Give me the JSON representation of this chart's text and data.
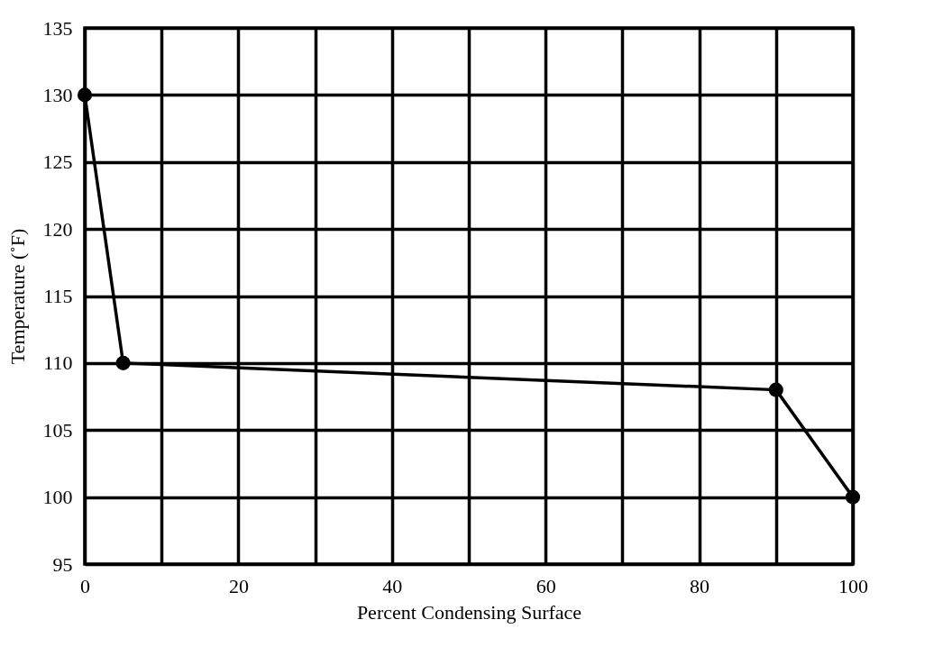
{
  "chart_data": {
    "type": "line",
    "xlabel": "Percent Condensing Surface",
    "ylabel": "Temperature (˚F)",
    "x": [
      0,
      5,
      90,
      100
    ],
    "series": [
      {
        "color": "#000000",
        "values": [
          130,
          110,
          108,
          100
        ]
      }
    ],
    "xlim": [
      0,
      100
    ],
    "xticks": [
      0,
      {
        "value": 10,
        "label": null
      },
      20,
      {
        "value": 30,
        "label": null
      },
      40,
      {
        "value": 50,
        "label": null
      },
      60,
      {
        "value": 70,
        "label": null
      },
      80,
      {
        "value": 90,
        "label": null
      },
      100
    ],
    "ylim": [
      95,
      135
    ],
    "yticks": [
      95,
      100,
      105,
      110,
      115,
      120,
      125,
      130,
      135
    ],
    "grid": true,
    "marker": "circle",
    "line_style": "solid",
    "legend": false
  }
}
